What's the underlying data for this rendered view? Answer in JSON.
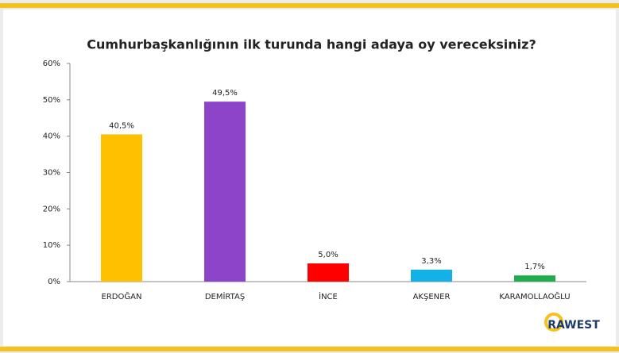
{
  "chart_data": {
    "type": "bar",
    "title": "Cumhurbaşkanlığının ilk turunda hangi adaya oy vereceksiniz?",
    "categories": [
      "ERDOĞAN",
      "DEMİRTAŞ",
      "İNCE",
      "AKŞENER",
      "KARAMOLLAOĞLU"
    ],
    "values": [
      40.5,
      49.5,
      5.0,
      3.3,
      1.7
    ],
    "value_labels": [
      "40,5%",
      "49,5%",
      "5,0%",
      "3,3%",
      "1,7%"
    ],
    "colors": [
      "#ffc000",
      "#8e44c9",
      "#ff0000",
      "#14b1e7",
      "#1fae4b"
    ],
    "ylim": [
      0,
      60
    ],
    "yticks": [
      {
        "value": 0,
        "label": "0%"
      },
      {
        "value": 10,
        "label": "10%"
      },
      {
        "value": 20,
        "label": "20%"
      },
      {
        "value": 30,
        "label": "30%"
      },
      {
        "value": 40,
        "label": "40%"
      },
      {
        "value": 50,
        "label": "50%"
      },
      {
        "value": 60,
        "label": "60%"
      }
    ],
    "grid": false,
    "logo": "RAWEST"
  }
}
